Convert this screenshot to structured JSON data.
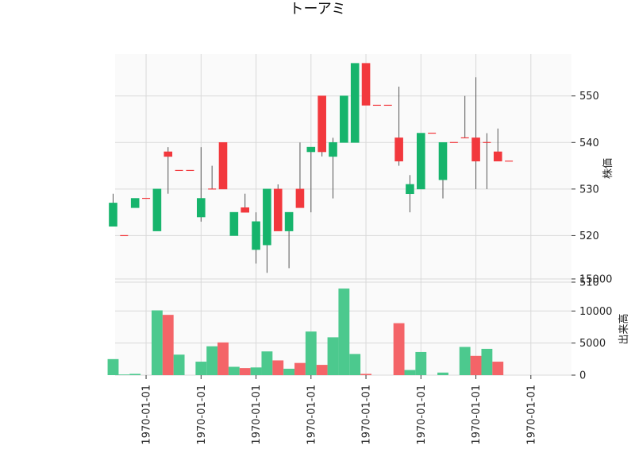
{
  "chart_data": {
    "type": "candlestick",
    "title": "トーアミ",
    "price_axis": {
      "label": "株価",
      "ylim": [
        510,
        559
      ],
      "ticks": [
        510,
        520,
        530,
        540,
        550
      ]
    },
    "volume_axis": {
      "label": "出来高",
      "ylim": [
        0,
        14500
      ],
      "ticks": [
        0,
        5000,
        10000,
        15000
      ]
    },
    "x_tick_labels": [
      "1970-01-01",
      "1970-01-01",
      "1970-01-01",
      "1970-01-01",
      "1970-01-01",
      "1970-01-01",
      "1970-01-01",
      "1970-01-01"
    ],
    "x_tick_positions": [
      3,
      8,
      13,
      18,
      23,
      28,
      33,
      38
    ],
    "colors": {
      "up": "#16b46c",
      "down": "#f2383d",
      "up_volume": "#4cc98e",
      "down_volume": "#f46468",
      "grid": "#d9d9d9",
      "background": "#fafafa"
    },
    "candles": [
      {
        "open": 522,
        "high": 529,
        "low": 522,
        "close": 527,
        "volume": 2500
      },
      {
        "open": 520,
        "high": 520,
        "low": 520,
        "close": 520,
        "volume": 100
      },
      {
        "open": 526,
        "high": 528,
        "low": 526,
        "close": 528,
        "volume": 200
      },
      {
        "open": 528,
        "high": 528,
        "low": 528,
        "close": 528,
        "volume": 0
      },
      {
        "open": 521,
        "high": 530,
        "low": 521,
        "close": 530,
        "volume": 10100
      },
      {
        "open": 538,
        "high": 539,
        "low": 529,
        "close": 537,
        "volume": 9400
      },
      {
        "open": 534,
        "high": 534,
        "low": 534,
        "close": 534,
        "volume": 3200
      },
      {
        "open": 534,
        "high": 534,
        "low": 534,
        "close": 534,
        "volume": 0
      },
      {
        "open": 524,
        "high": 539,
        "low": 523,
        "close": 528,
        "volume": 2100
      },
      {
        "open": 530,
        "high": 535,
        "low": 530,
        "close": 530,
        "volume": 4500
      },
      {
        "open": 540,
        "high": 540,
        "low": 530,
        "close": 530,
        "volume": 5100
      },
      {
        "open": 520,
        "high": 525,
        "low": 520,
        "close": 525,
        "volume": 1300
      },
      {
        "open": 526,
        "high": 529,
        "low": 525,
        "close": 525,
        "volume": 1100
      },
      {
        "open": 517,
        "high": 525,
        "low": 514,
        "close": 523,
        "volume": 1200
      },
      {
        "open": 518,
        "high": 530,
        "low": 512,
        "close": 530,
        "volume": 3700
      },
      {
        "open": 530,
        "high": 531,
        "low": 521,
        "close": 521,
        "volume": 2300
      },
      {
        "open": 521,
        "high": 525,
        "low": 513,
        "close": 525,
        "volume": 1000
      },
      {
        "open": 530,
        "high": 540,
        "low": 526,
        "close": 526,
        "volume": 1900
      },
      {
        "open": 538,
        "high": 539,
        "low": 525,
        "close": 539,
        "volume": 6800
      },
      {
        "open": 550,
        "high": 550,
        "low": 537,
        "close": 538,
        "volume": 1600
      },
      {
        "open": 537,
        "high": 541,
        "low": 528,
        "close": 540,
        "volume": 5900
      },
      {
        "open": 540,
        "high": 550,
        "low": 540,
        "close": 550,
        "volume": 13500
      },
      {
        "open": 540,
        "high": 557,
        "low": 540,
        "close": 557,
        "volume": 3300
      },
      {
        "open": 557,
        "high": 557,
        "low": 548,
        "close": 548,
        "volume": 200
      },
      {
        "open": 548,
        "high": 548,
        "low": 548,
        "close": 548,
        "volume": 0
      },
      {
        "open": 548,
        "high": 548,
        "low": 548,
        "close": 548,
        "volume": 0
      },
      {
        "open": 541,
        "high": 552,
        "low": 535,
        "close": 536,
        "volume": 8100
      },
      {
        "open": 529,
        "high": 533,
        "low": 525,
        "close": 531,
        "volume": 800
      },
      {
        "open": 530,
        "high": 542,
        "low": 530,
        "close": 542,
        "volume": 3600
      },
      {
        "open": 542,
        "high": 542,
        "low": 542,
        "close": 542,
        "volume": 0
      },
      {
        "open": 532,
        "high": 540,
        "low": 528,
        "close": 540,
        "volume": 400
      },
      {
        "open": 540,
        "high": 540,
        "low": 540,
        "close": 540,
        "volume": 0
      },
      {
        "open": 541,
        "high": 550,
        "low": 541,
        "close": 541,
        "volume": 4400
      },
      {
        "open": 541,
        "high": 554,
        "low": 530,
        "close": 536,
        "volume": 3000
      },
      {
        "open": 540,
        "high": 542,
        "low": 530,
        "close": 540,
        "volume": 4100
      },
      {
        "open": 538,
        "high": 543,
        "low": 536,
        "close": 536,
        "volume": 2100
      },
      {
        "open": 536,
        "high": 536,
        "low": 536,
        "close": 536,
        "volume": 0
      }
    ]
  }
}
